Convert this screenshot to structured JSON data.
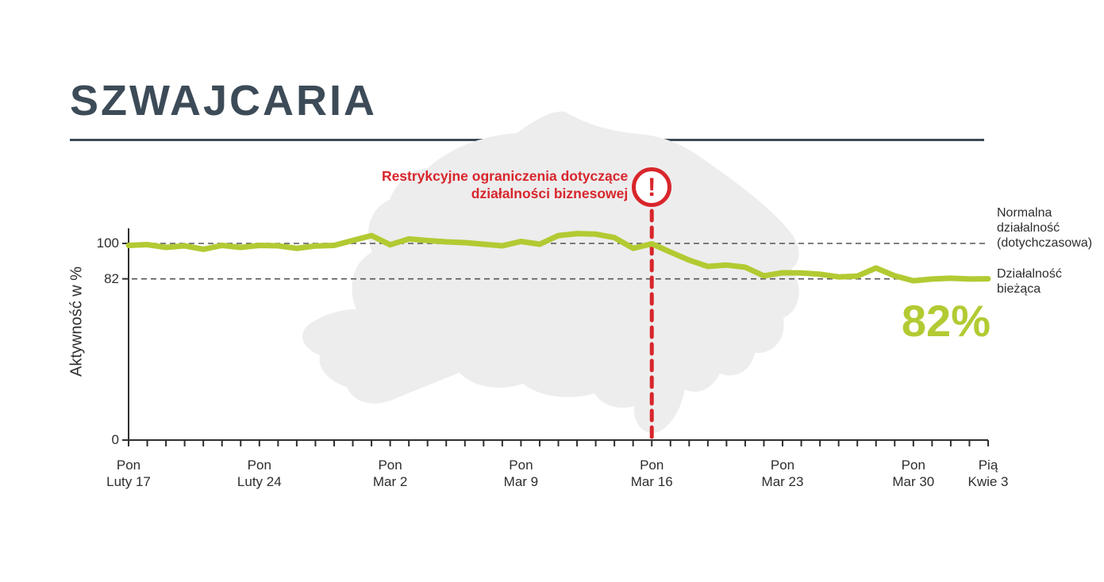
{
  "page": {
    "title": "SZWAJCARIA"
  },
  "annotation": {
    "text": "Restrykcyjne ograniczenia dotyczące działalności biznesowej",
    "icon_glyph": "!"
  },
  "labels": {
    "normal_activity": "Normalna działalność (dotychczasowa)",
    "current_activity": "Działalność bieżąca",
    "current_value": "82%"
  },
  "colors": {
    "accent_green": "#b3ca33",
    "accent_red": "#d8262c",
    "title": "#3d4b58",
    "map_silhouette": "#ededed"
  },
  "chart_data": {
    "type": "line",
    "title": "SZWAJCARIA",
    "ylabel": "Aktywność w %",
    "ylim": [
      0,
      110
    ],
    "yticks": [
      0,
      82,
      100
    ],
    "reference_lines": [
      100,
      82
    ],
    "grid": false,
    "x_unit": "day",
    "x_major_ticks": [
      {
        "index": 0,
        "line1": "Pon",
        "line2": "Luty 17"
      },
      {
        "index": 7,
        "line1": "Pon",
        "line2": "Luty 24"
      },
      {
        "index": 14,
        "line1": "Pon",
        "line2": "Mar 2"
      },
      {
        "index": 21,
        "line1": "Pon",
        "line2": "Mar 9"
      },
      {
        "index": 28,
        "line1": "Pon",
        "line2": "Mar 16"
      },
      {
        "index": 35,
        "line1": "Pon",
        "line2": "Mar 23"
      },
      {
        "index": 42,
        "line1": "Pon",
        "line2": "Mar 30"
      },
      {
        "index": 46,
        "line1": "Pią",
        "line2": "Kwie 3"
      }
    ],
    "event": {
      "index": 28,
      "label": "Restrykcyjne ograniczenia dotyczące działalności biznesowej"
    },
    "series": [
      {
        "name": "Działalność bieżąca",
        "values": [
          99,
          99.4,
          98,
          98.8,
          97,
          99,
          98,
          99,
          98.8,
          97.5,
          98.7,
          99,
          101.5,
          104,
          99.3,
          102.3,
          101.5,
          100.8,
          100.4,
          99.6,
          98.8,
          101,
          99.6,
          104,
          105,
          104.7,
          103,
          97.5,
          99.8,
          95.6,
          91.5,
          88.3,
          89,
          87.9,
          83.5,
          85.1,
          85,
          84.3,
          83,
          83.4,
          87.5,
          83.5,
          81,
          81.9,
          82.3,
          81.9,
          82
        ]
      }
    ],
    "end_value_label": "82%"
  }
}
